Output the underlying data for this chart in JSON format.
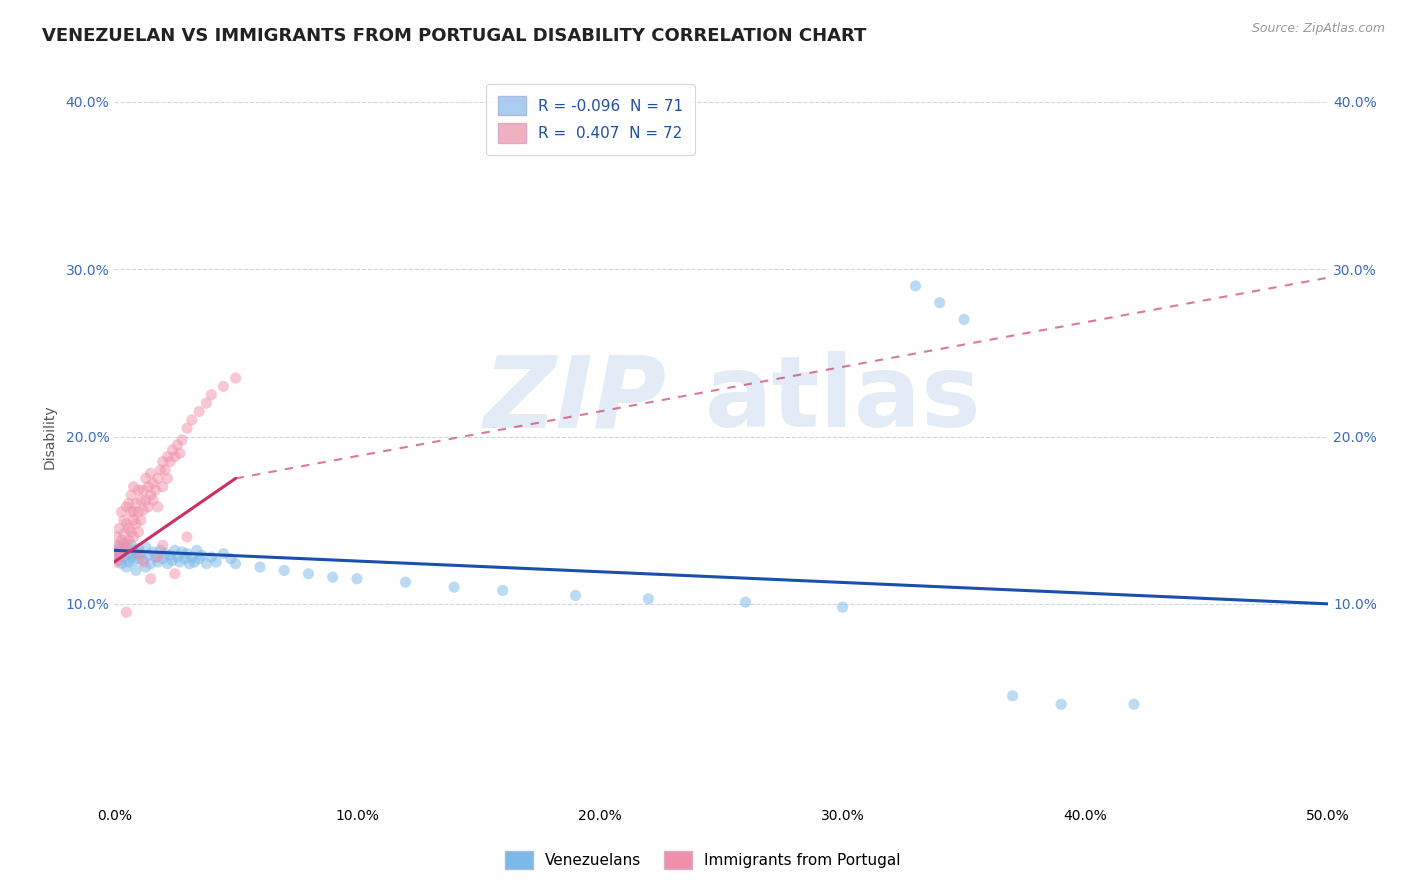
{
  "title": "VENEZUELAN VS IMMIGRANTS FROM PORTUGAL DISABILITY CORRELATION CHART",
  "source_text": "Source: ZipAtlas.com",
  "ylabel": "Disability",
  "xlim": [
    0.0,
    0.5
  ],
  "ylim": [
    -0.02,
    0.42
  ],
  "y_ticks": [
    0.1,
    0.2,
    0.3,
    0.4
  ],
  "y_tick_labels": [
    "10.0%",
    "20.0%",
    "30.0%",
    "40.0%"
  ],
  "x_ticks": [
    0.0,
    0.1,
    0.2,
    0.3,
    0.4,
    0.5
  ],
  "x_tick_labels": [
    "0.0%",
    "10.0%",
    "20.0%",
    "30.0%",
    "40.0%",
    "50.0%"
  ],
  "legend_label_ven": "R = -0.096  N = 71",
  "legend_label_port": "R =  0.407  N = 72",
  "venezuelan_color": "#7ab8e8",
  "portugal_color": "#f090a8",
  "venezuelan_line_color": "#1a4faa",
  "portugal_line_color": "#cc3060",
  "legend_ven_patch": "#aaccf0",
  "legend_port_patch": "#f0b0c0",
  "background_color": "#ffffff",
  "grid_color": "#ccd8e8",
  "title_fontsize": 13,
  "axis_label_fontsize": 10,
  "tick_fontsize": 10,
  "legend_fontsize": 11,
  "dot_size": 65,
  "dot_alpha": 0.5,
  "line_width": 2.2,
  "venezuelan_points": [
    [
      0.001,
      0.132
    ],
    [
      0.001,
      0.128
    ],
    [
      0.002,
      0.134
    ],
    [
      0.002,
      0.126
    ],
    [
      0.003,
      0.13
    ],
    [
      0.003,
      0.124
    ],
    [
      0.004,
      0.136
    ],
    [
      0.004,
      0.128
    ],
    [
      0.005,
      0.133
    ],
    [
      0.005,
      0.122
    ],
    [
      0.006,
      0.13
    ],
    [
      0.006,
      0.125
    ],
    [
      0.007,
      0.128
    ],
    [
      0.007,
      0.135
    ],
    [
      0.008,
      0.126
    ],
    [
      0.008,
      0.132
    ],
    [
      0.009,
      0.13
    ],
    [
      0.009,
      0.12
    ],
    [
      0.01,
      0.133
    ],
    [
      0.01,
      0.127
    ],
    [
      0.011,
      0.13
    ],
    [
      0.012,
      0.126
    ],
    [
      0.013,
      0.134
    ],
    [
      0.013,
      0.122
    ],
    [
      0.014,
      0.129
    ],
    [
      0.015,
      0.124
    ],
    [
      0.016,
      0.131
    ],
    [
      0.017,
      0.128
    ],
    [
      0.018,
      0.125
    ],
    [
      0.019,
      0.132
    ],
    [
      0.02,
      0.127
    ],
    [
      0.021,
      0.13
    ],
    [
      0.022,
      0.124
    ],
    [
      0.023,
      0.129
    ],
    [
      0.024,
      0.126
    ],
    [
      0.025,
      0.132
    ],
    [
      0.026,
      0.128
    ],
    [
      0.027,
      0.125
    ],
    [
      0.028,
      0.131
    ],
    [
      0.029,
      0.127
    ],
    [
      0.03,
      0.13
    ],
    [
      0.031,
      0.124
    ],
    [
      0.032,
      0.128
    ],
    [
      0.033,
      0.125
    ],
    [
      0.034,
      0.132
    ],
    [
      0.035,
      0.127
    ],
    [
      0.036,
      0.129
    ],
    [
      0.038,
      0.124
    ],
    [
      0.04,
      0.128
    ],
    [
      0.042,
      0.125
    ],
    [
      0.045,
      0.13
    ],
    [
      0.048,
      0.127
    ],
    [
      0.05,
      0.124
    ],
    [
      0.06,
      0.122
    ],
    [
      0.07,
      0.12
    ],
    [
      0.08,
      0.118
    ],
    [
      0.09,
      0.116
    ],
    [
      0.1,
      0.115
    ],
    [
      0.12,
      0.113
    ],
    [
      0.14,
      0.11
    ],
    [
      0.16,
      0.108
    ],
    [
      0.19,
      0.105
    ],
    [
      0.22,
      0.103
    ],
    [
      0.26,
      0.101
    ],
    [
      0.3,
      0.098
    ],
    [
      0.33,
      0.29
    ],
    [
      0.34,
      0.28
    ],
    [
      0.35,
      0.27
    ],
    [
      0.37,
      0.045
    ],
    [
      0.39,
      0.04
    ],
    [
      0.42,
      0.04
    ]
  ],
  "portugal_points": [
    [
      0.001,
      0.13
    ],
    [
      0.001,
      0.125
    ],
    [
      0.001,
      0.14
    ],
    [
      0.002,
      0.135
    ],
    [
      0.002,
      0.128
    ],
    [
      0.002,
      0.145
    ],
    [
      0.003,
      0.138
    ],
    [
      0.003,
      0.13
    ],
    [
      0.003,
      0.155
    ],
    [
      0.004,
      0.142
    ],
    [
      0.004,
      0.133
    ],
    [
      0.004,
      0.15
    ],
    [
      0.005,
      0.148
    ],
    [
      0.005,
      0.136
    ],
    [
      0.005,
      0.158
    ],
    [
      0.006,
      0.145
    ],
    [
      0.006,
      0.16
    ],
    [
      0.006,
      0.138
    ],
    [
      0.007,
      0.155
    ],
    [
      0.007,
      0.143
    ],
    [
      0.007,
      0.165
    ],
    [
      0.008,
      0.15
    ],
    [
      0.008,
      0.14
    ],
    [
      0.008,
      0.17
    ],
    [
      0.009,
      0.16
    ],
    [
      0.009,
      0.148
    ],
    [
      0.01,
      0.155
    ],
    [
      0.01,
      0.168
    ],
    [
      0.01,
      0.143
    ],
    [
      0.011,
      0.162
    ],
    [
      0.011,
      0.15
    ],
    [
      0.012,
      0.168
    ],
    [
      0.012,
      0.156
    ],
    [
      0.013,
      0.175
    ],
    [
      0.013,
      0.162
    ],
    [
      0.014,
      0.17
    ],
    [
      0.014,
      0.158
    ],
    [
      0.015,
      0.178
    ],
    [
      0.015,
      0.165
    ],
    [
      0.016,
      0.172
    ],
    [
      0.016,
      0.162
    ],
    [
      0.017,
      0.168
    ],
    [
      0.018,
      0.175
    ],
    [
      0.018,
      0.158
    ],
    [
      0.019,
      0.18
    ],
    [
      0.02,
      0.185
    ],
    [
      0.02,
      0.17
    ],
    [
      0.021,
      0.18
    ],
    [
      0.022,
      0.188
    ],
    [
      0.022,
      0.175
    ],
    [
      0.023,
      0.185
    ],
    [
      0.024,
      0.192
    ],
    [
      0.025,
      0.188
    ],
    [
      0.026,
      0.195
    ],
    [
      0.027,
      0.19
    ],
    [
      0.028,
      0.198
    ],
    [
      0.03,
      0.205
    ],
    [
      0.032,
      0.21
    ],
    [
      0.035,
      0.215
    ],
    [
      0.038,
      0.22
    ],
    [
      0.04,
      0.225
    ],
    [
      0.045,
      0.23
    ],
    [
      0.05,
      0.235
    ],
    [
      0.005,
      0.095
    ],
    [
      0.008,
      0.155
    ],
    [
      0.01,
      0.13
    ],
    [
      0.012,
      0.125
    ],
    [
      0.015,
      0.115
    ],
    [
      0.018,
      0.128
    ],
    [
      0.02,
      0.135
    ],
    [
      0.025,
      0.118
    ],
    [
      0.03,
      0.14
    ]
  ]
}
